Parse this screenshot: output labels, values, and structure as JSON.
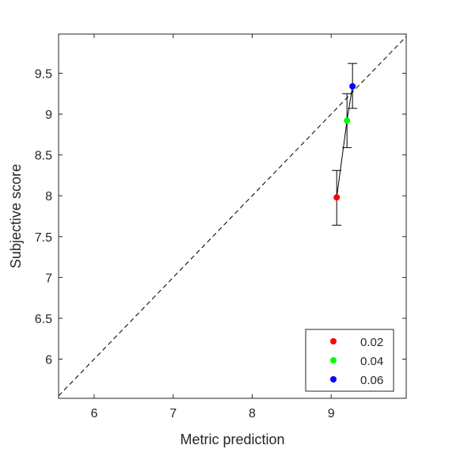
{
  "chart_data": {
    "type": "scatter",
    "title": "",
    "xlabel": "Metric prediction",
    "ylabel": "Subjective score",
    "xlim": [
      5.55,
      9.95
    ],
    "ylim": [
      5.52,
      9.98
    ],
    "xticks": [
      6,
      7,
      8,
      9
    ],
    "xtick_labels": [
      "6",
      "7",
      "8",
      "9"
    ],
    "yticks": [
      6,
      6.5,
      7,
      7.5,
      8,
      8.5,
      9,
      9.5
    ],
    "ytick_labels": [
      "6",
      "6.5",
      "7",
      "7.5",
      "8",
      "8.5",
      "9",
      "9.5"
    ],
    "grid": false,
    "identity_line": true,
    "connect_points": true,
    "legend_position": "bottom-right",
    "series": [
      {
        "name": "0.02",
        "color": "#ff0000",
        "x": 9.07,
        "y": 7.98,
        "err_low": 7.64,
        "err_high": 8.31
      },
      {
        "name": "0.04",
        "color": "#00ff00",
        "x": 9.2,
        "y": 8.92,
        "err_low": 8.59,
        "err_high": 9.25
      },
      {
        "name": "0.06",
        "color": "#0000ff",
        "x": 9.27,
        "y": 9.34,
        "err_low": 9.07,
        "err_high": 9.62
      }
    ]
  }
}
